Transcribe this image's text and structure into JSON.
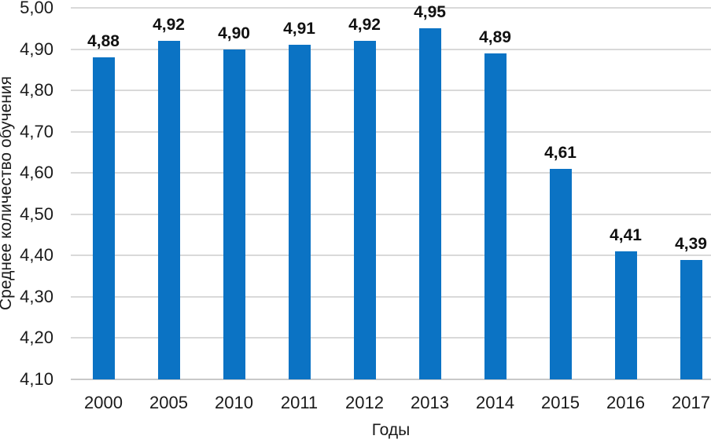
{
  "chart_data": {
    "type": "bar",
    "title": "",
    "xlabel": "Годы",
    "ylabel": "Среднее количество обучения",
    "categories": [
      "2000",
      "2005",
      "2010",
      "2011",
      "2012",
      "2013",
      "2014",
      "2015",
      "2016",
      "2017"
    ],
    "values": [
      4.88,
      4.92,
      4.9,
      4.91,
      4.92,
      4.95,
      4.89,
      4.61,
      4.41,
      4.39
    ],
    "value_labels": [
      "4,88",
      "4,92",
      "4,90",
      "4,91",
      "4,92",
      "4,95",
      "4,89",
      "4,61",
      "4,41",
      "4,39"
    ],
    "ylim": [
      4.1,
      5.0
    ],
    "yticks": [
      4.1,
      4.2,
      4.3,
      4.4,
      4.5,
      4.6,
      4.7,
      4.8,
      4.9,
      5.0
    ],
    "ytick_labels": [
      "4,10",
      "4,20",
      "4,30",
      "4,40",
      "4,50",
      "4,60",
      "4,70",
      "4,80",
      "4,90",
      "5,00"
    ],
    "grid": "horizontal",
    "legend": "none",
    "bar_color": "#0b73c4",
    "gridline_color": "#d9d9d9",
    "text_color": "#1a1a1a"
  }
}
